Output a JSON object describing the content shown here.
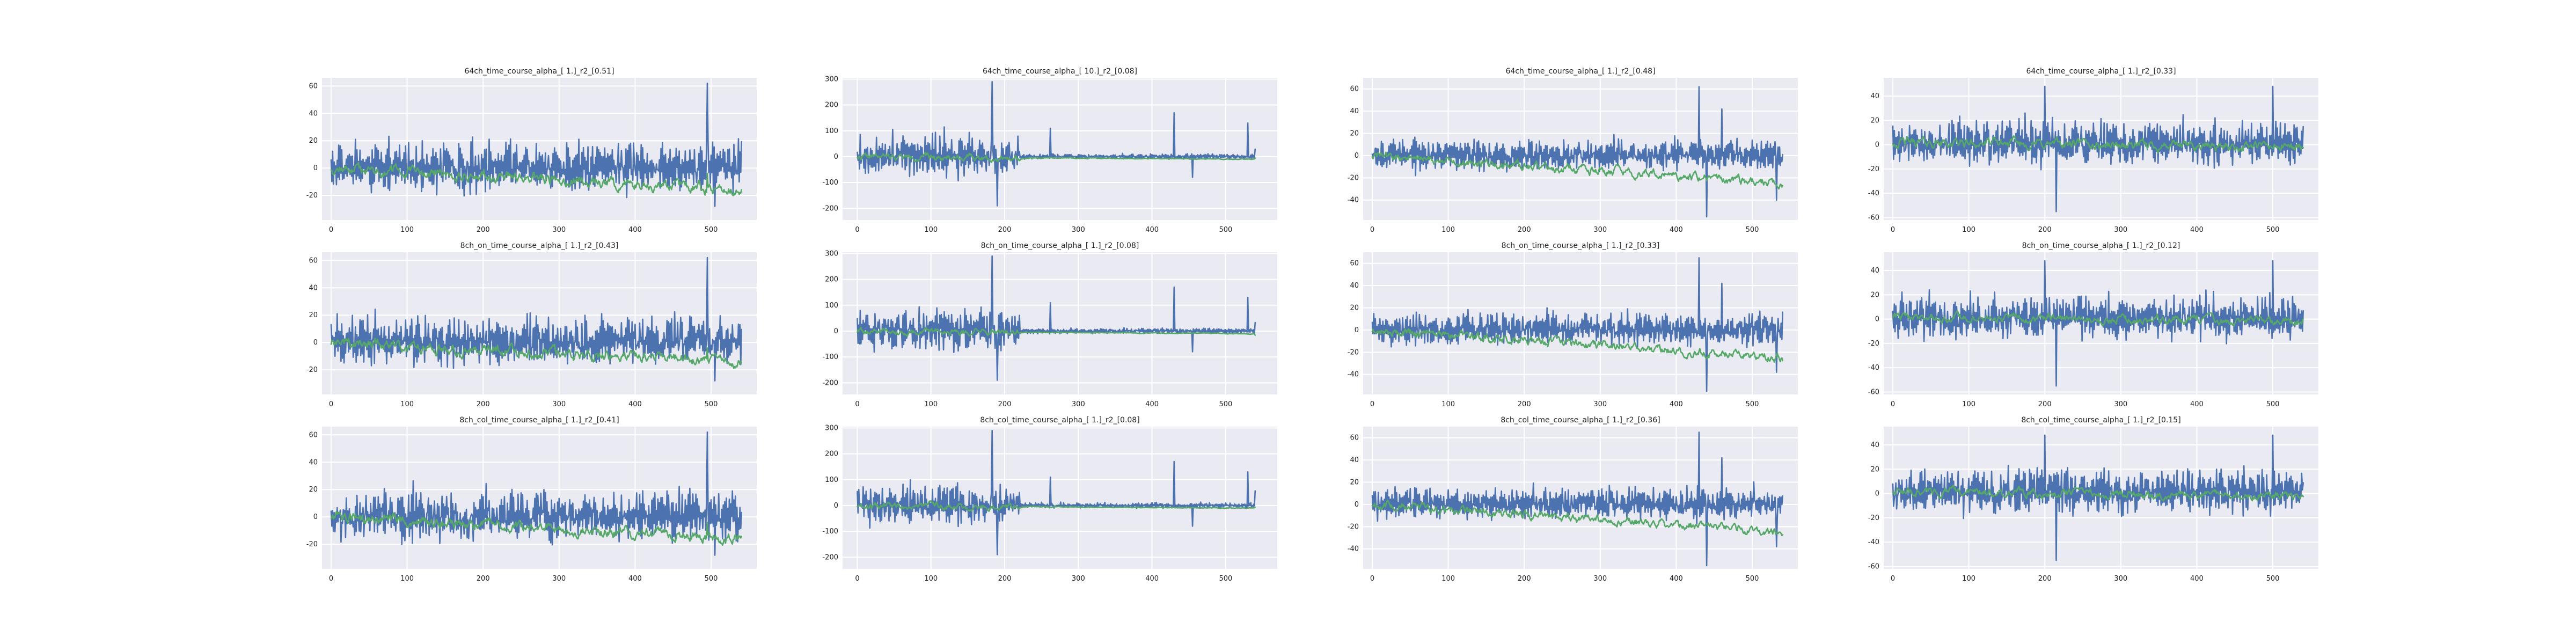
{
  "chart_data": [
    {
      "type": "line",
      "title": "64ch_time_course_alpha_[ 1.]_r2_[0.51]",
      "xlim": [
        -12,
        560
      ],
      "ylim": [
        -38,
        66
      ],
      "xticks": [
        0,
        100,
        200,
        300,
        400,
        500
      ],
      "yticks": [
        -20,
        0,
        20,
        40,
        60
      ],
      "series": [
        {
          "color": "#4c72b0",
          "seed": 11,
          "amp": 20,
          "offset": 0,
          "drift": 0,
          "events": [
            [
              495,
              62
            ],
            [
              505,
              -28
            ]
          ]
        },
        {
          "color": "#55a868",
          "seed": 12,
          "amp": 6,
          "offset": 0,
          "drift": -16,
          "smooth": true,
          "events": [
            [
              495,
              -4
            ]
          ]
        }
      ]
    },
    {
      "type": "line",
      "title": "64ch_time_course_alpha_[ 10.]_r2_[0.08]",
      "xlim": [
        -20,
        570
      ],
      "ylim": [
        -245,
        305
      ],
      "xticks": [
        0,
        100,
        200,
        300,
        400,
        500
      ],
      "yticks": [
        -200,
        -100,
        0,
        100,
        200,
        300
      ],
      "series": [
        {
          "color": "#4c72b0",
          "seed": 21,
          "amp": 90,
          "offset": 0,
          "drift": 0,
          "quiet": [
            220,
            540
          ],
          "events": [
            [
              183,
              290
            ],
            [
              190,
              -190
            ],
            [
              262,
              110
            ],
            [
              430,
              170
            ],
            [
              455,
              -80
            ],
            [
              530,
              130
            ]
          ]
        },
        {
          "color": "#55a868",
          "seed": 22,
          "amp": 18,
          "offset": 0,
          "drift": -10,
          "smooth": true,
          "quiet": [
            220,
            540
          ],
          "events": []
        }
      ]
    },
    {
      "type": "line",
      "title": "64ch_time_course_alpha_[ 1.]_r2_[0.48]",
      "xlim": [
        -12,
        560
      ],
      "ylim": [
        -58,
        70
      ],
      "xticks": [
        0,
        100,
        200,
        300,
        400,
        500
      ],
      "yticks": [
        -40,
        -20,
        0,
        20,
        40,
        60
      ],
      "series": [
        {
          "color": "#4c72b0",
          "seed": 31,
          "amp": 16,
          "offset": 0,
          "drift": 0,
          "events": [
            [
              430,
              62
            ],
            [
              440,
              -55
            ],
            [
              460,
              42
            ],
            [
              532,
              -40
            ]
          ]
        },
        {
          "color": "#55a868",
          "seed": 32,
          "amp": 6,
          "offset": 0,
          "drift": -25,
          "smooth": true,
          "events": []
        }
      ]
    },
    {
      "type": "line",
      "title": "64ch_time_course_alpha_[ 1.]_r2_[0.33]",
      "xlim": [
        -12,
        560
      ],
      "ylim": [
        -62,
        55
      ],
      "xticks": [
        0,
        100,
        200,
        300,
        400,
        500
      ],
      "yticks": [
        -60,
        -40,
        -20,
        0,
        20,
        40
      ],
      "series": [
        {
          "color": "#4c72b0",
          "seed": 41,
          "amp": 20,
          "offset": 0,
          "drift": 0,
          "events": [
            [
              200,
              48
            ],
            [
              215,
              -55
            ],
            [
              500,
              48
            ]
          ]
        },
        {
          "color": "#55a868",
          "seed": 42,
          "amp": 6,
          "offset": 2,
          "drift": -4,
          "smooth": true,
          "events": []
        }
      ]
    },
    {
      "type": "line",
      "title": "8ch_on_time_course_alpha_[ 1.]_r2_[0.43]",
      "xlim": [
        -12,
        560
      ],
      "ylim": [
        -38,
        66
      ],
      "xticks": [
        0,
        100,
        200,
        300,
        400,
        500
      ],
      "yticks": [
        -20,
        0,
        20,
        40,
        60
      ],
      "series": [
        {
          "color": "#4c72b0",
          "seed": 51,
          "amp": 20,
          "offset": 0,
          "drift": 0,
          "events": [
            [
              495,
              62
            ],
            [
              505,
              -28
            ]
          ]
        },
        {
          "color": "#55a868",
          "seed": 52,
          "amp": 6,
          "offset": 0,
          "drift": -14,
          "smooth": true,
          "events": [
            [
              495,
              -4
            ]
          ]
        }
      ]
    },
    {
      "type": "line",
      "title": "8ch_on_time_course_alpha_[ 1.]_r2_[0.08]",
      "xlim": [
        -20,
        570
      ],
      "ylim": [
        -245,
        305
      ],
      "xticks": [
        0,
        100,
        200,
        300,
        400,
        500
      ],
      "yticks": [
        -200,
        -100,
        0,
        100,
        200,
        300
      ],
      "series": [
        {
          "color": "#4c72b0",
          "seed": 61,
          "amp": 90,
          "offset": 0,
          "drift": 0,
          "quiet": [
            220,
            540
          ],
          "events": [
            [
              183,
              290
            ],
            [
              190,
              -190
            ],
            [
              262,
              110
            ],
            [
              430,
              170
            ],
            [
              455,
              -80
            ],
            [
              530,
              130
            ]
          ]
        },
        {
          "color": "#55a868",
          "seed": 62,
          "amp": 18,
          "offset": 0,
          "drift": -10,
          "smooth": true,
          "quiet": [
            220,
            540
          ],
          "events": []
        }
      ]
    },
    {
      "type": "line",
      "title": "8ch_on_time_course_alpha_[ 1.]_r2_[0.33]",
      "xlim": [
        -12,
        560
      ],
      "ylim": [
        -58,
        70
      ],
      "xticks": [
        0,
        100,
        200,
        300,
        400,
        500
      ],
      "yticks": [
        -40,
        -20,
        0,
        20,
        40,
        60
      ],
      "series": [
        {
          "color": "#4c72b0",
          "seed": 71,
          "amp": 16,
          "offset": 0,
          "drift": 0,
          "events": [
            [
              430,
              65
            ],
            [
              440,
              -55
            ],
            [
              460,
              42
            ],
            [
              532,
              -38
            ]
          ]
        },
        {
          "color": "#55a868",
          "seed": 72,
          "amp": 6,
          "offset": 0,
          "drift": -25,
          "smooth": true,
          "events": []
        }
      ]
    },
    {
      "type": "line",
      "title": "8ch_on_time_course_alpha_[ 1.]_r2_[0.12]",
      "xlim": [
        -12,
        560
      ],
      "ylim": [
        -62,
        55
      ],
      "xticks": [
        0,
        100,
        200,
        300,
        400,
        500
      ],
      "yticks": [
        -60,
        -40,
        -20,
        0,
        20,
        40
      ],
      "series": [
        {
          "color": "#4c72b0",
          "seed": 81,
          "amp": 20,
          "offset": 0,
          "drift": 0,
          "events": [
            [
              200,
              48
            ],
            [
              215,
              -55
            ],
            [
              500,
              48
            ]
          ]
        },
        {
          "color": "#55a868",
          "seed": 82,
          "amp": 5,
          "offset": 2,
          "drift": -4,
          "smooth": true,
          "events": []
        }
      ]
    },
    {
      "type": "line",
      "title": "8ch_col_time_course_alpha_[ 1.]_r2_[0.41]",
      "xlim": [
        -12,
        560
      ],
      "ylim": [
        -38,
        66
      ],
      "xticks": [
        0,
        100,
        200,
        300,
        400,
        500
      ],
      "yticks": [
        -20,
        0,
        20,
        40,
        60
      ],
      "series": [
        {
          "color": "#4c72b0",
          "seed": 91,
          "amp": 20,
          "offset": 0,
          "drift": 0,
          "events": [
            [
              495,
              62
            ],
            [
              505,
              -28
            ]
          ]
        },
        {
          "color": "#55a868",
          "seed": 92,
          "amp": 6,
          "offset": 0,
          "drift": -16,
          "smooth": true,
          "events": [
            [
              495,
              -4
            ]
          ]
        }
      ]
    },
    {
      "type": "line",
      "title": "8ch_col_time_course_alpha_[ 1.]_r2_[0.08]",
      "xlim": [
        -20,
        570
      ],
      "ylim": [
        -245,
        305
      ],
      "xticks": [
        0,
        100,
        200,
        300,
        400,
        500
      ],
      "yticks": [
        -200,
        -100,
        0,
        100,
        200,
        300
      ],
      "series": [
        {
          "color": "#4c72b0",
          "seed": 101,
          "amp": 90,
          "offset": 0,
          "drift": 0,
          "quiet": [
            220,
            540
          ],
          "events": [
            [
              183,
              290
            ],
            [
              190,
              -190
            ],
            [
              262,
              110
            ],
            [
              430,
              170
            ],
            [
              455,
              -80
            ],
            [
              530,
              130
            ]
          ]
        },
        {
          "color": "#55a868",
          "seed": 102,
          "amp": 18,
          "offset": 0,
          "drift": -10,
          "smooth": true,
          "quiet": [
            220,
            540
          ],
          "events": []
        }
      ]
    },
    {
      "type": "line",
      "title": "8ch_col_time_course_alpha_[ 1.]_r2_[0.36]",
      "xlim": [
        -12,
        560
      ],
      "ylim": [
        -58,
        70
      ],
      "xticks": [
        0,
        100,
        200,
        300,
        400,
        500
      ],
      "yticks": [
        -40,
        -20,
        0,
        20,
        40,
        60
      ],
      "series": [
        {
          "color": "#4c72b0",
          "seed": 111,
          "amp": 16,
          "offset": 0,
          "drift": 0,
          "events": [
            [
              430,
              65
            ],
            [
              440,
              -55
            ],
            [
              460,
              42
            ],
            [
              532,
              -38
            ]
          ]
        },
        {
          "color": "#55a868",
          "seed": 112,
          "amp": 6,
          "offset": 0,
          "drift": -25,
          "smooth": true,
          "events": []
        }
      ]
    },
    {
      "type": "line",
      "title": "8ch_col_time_course_alpha_[ 1.]_r2_[0.15]",
      "xlim": [
        -12,
        560
      ],
      "ylim": [
        -62,
        55
      ],
      "xticks": [
        0,
        100,
        200,
        300,
        400,
        500
      ],
      "yticks": [
        -60,
        -40,
        -20,
        0,
        20,
        40
      ],
      "series": [
        {
          "color": "#4c72b0",
          "seed": 121,
          "amp": 20,
          "offset": 0,
          "drift": 0,
          "events": [
            [
              200,
              48
            ],
            [
              215,
              -55
            ],
            [
              500,
              48
            ]
          ]
        },
        {
          "color": "#55a868",
          "seed": 122,
          "amp": 5,
          "offset": 2,
          "drift": -4,
          "smooth": true,
          "events": []
        }
      ]
    }
  ]
}
